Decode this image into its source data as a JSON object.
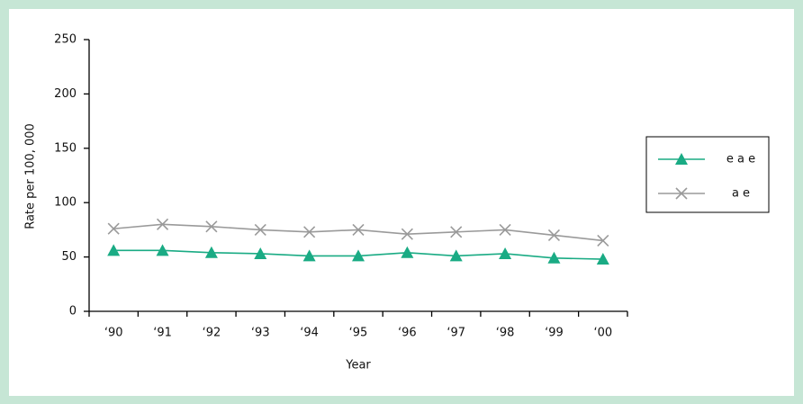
{
  "chart_data": {
    "type": "line",
    "x_label": "Year",
    "y_label": "Rate per 100, 000",
    "categories": [
      "‘90",
      "‘91",
      "‘92",
      "‘93",
      "‘94",
      "‘95",
      "‘96",
      "‘97",
      "‘98",
      "‘99",
      "‘00"
    ],
    "series": [
      {
        "name": "e a e",
        "color": "#1aab84",
        "marker": "triangle",
        "values": [
          56,
          56,
          54,
          53,
          51,
          51,
          54,
          51,
          53,
          49,
          48
        ]
      },
      {
        "name": "a e",
        "color": "#9a9a9a",
        "marker": "x",
        "values": [
          76,
          80,
          78,
          75,
          73,
          75,
          71,
          73,
          75,
          70,
          65
        ]
      }
    ],
    "ylim": [
      0,
      250
    ],
    "yticks": [
      0,
      50,
      100,
      150,
      200,
      250
    ],
    "grid": false,
    "legend": "right"
  }
}
